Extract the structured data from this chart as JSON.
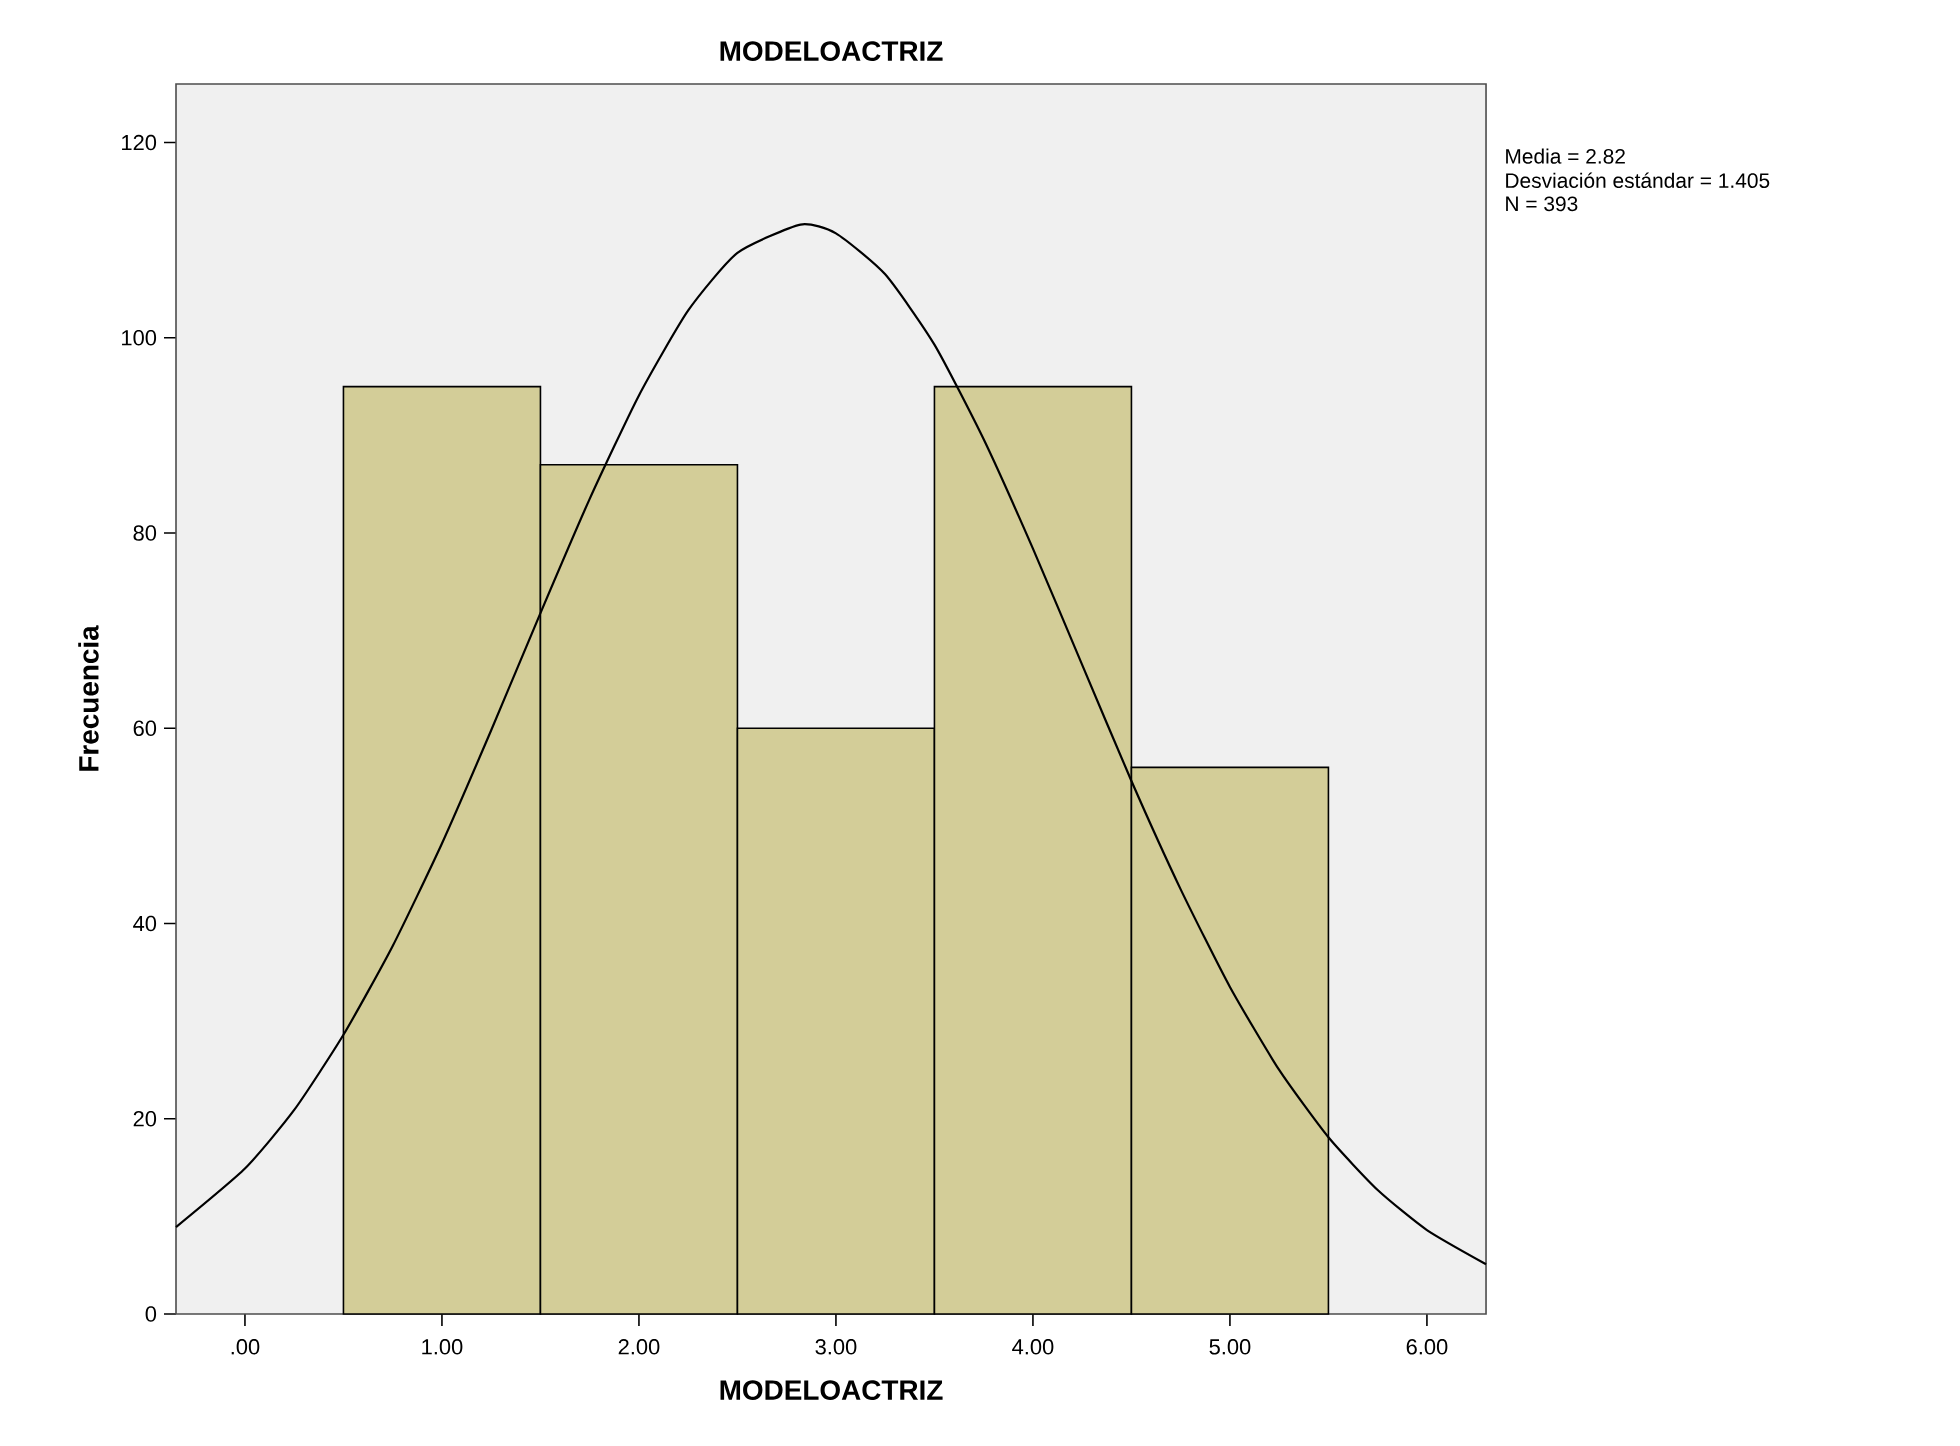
{
  "chart_data": {
    "type": "histogram",
    "title": "MODELOACTRIZ",
    "xlabel": "MODELOACTRIZ",
    "ylabel": "Frecuencia",
    "bins": [
      0.5,
      1.5,
      2.5,
      3.5,
      4.5,
      5.5
    ],
    "values": [
      95,
      87,
      60,
      95,
      56
    ],
    "color": "#d3cd98",
    "series": [
      {
        "type": "line",
        "color": "#000000",
        "marker": "none",
        "x": [
          -0.35,
          0,
          0.25,
          0.5,
          0.75,
          1,
          1.25,
          1.5,
          1.75,
          2,
          2.25,
          2.5,
          2.82,
          3,
          3.25,
          3.5,
          3.75,
          4,
          4.25,
          4.5,
          4.75,
          5,
          5.25,
          5.5,
          5.75,
          6,
          6.3
        ],
        "values": [
          8.9,
          14.9,
          20.9,
          28.6,
          37.7,
          48.2,
          59.8,
          71.8,
          83.5,
          94.1,
          102.8,
          108.7,
          111.6,
          110.7,
          106.5,
          99.3,
          89.6,
          78.4,
          66.5,
          54.6,
          43.5,
          33.5,
          25.0,
          18.1,
          12.7,
          8.6,
          5.1
        ]
      }
    ],
    "xlim": [
      -0.35,
      6.3
    ],
    "ylim": [
      0,
      126
    ],
    "xticks": [
      {
        "value": 0,
        "label": ".00"
      },
      {
        "value": 1,
        "label": "1.00"
      },
      {
        "value": 2,
        "label": "2.00"
      },
      {
        "value": 3,
        "label": "3.00"
      },
      {
        "value": 4,
        "label": "4.00"
      },
      {
        "value": 5,
        "label": "5.00"
      },
      {
        "value": 6,
        "label": "6.00"
      }
    ],
    "yticks": [
      0,
      20,
      40,
      60,
      80,
      100,
      120
    ],
    "annotations": [
      "Media = 2.82",
      "Desviación estándar = 1.405",
      "N = 393"
    ]
  }
}
